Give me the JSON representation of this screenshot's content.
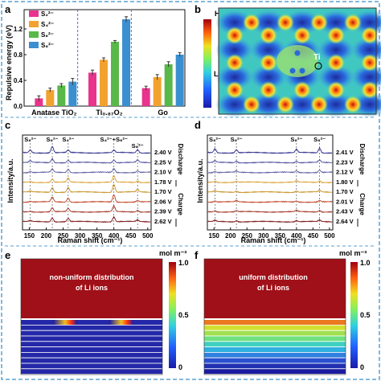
{
  "panels": {
    "a": {
      "letter": "a",
      "ylabel": "Repulsive energy (eV)",
      "yticks": [
        "0.0",
        "0.4",
        "0.8",
        "1.2"
      ],
      "legend": [
        "S₂²⁻",
        "S₄²⁻",
        "S₆²⁻",
        "S₈²⁻"
      ],
      "group_labels": [
        "Anatase TiO₂",
        "Ti₀.₈₇O₂",
        "Go"
      ]
    },
    "b": {
      "letter": "b",
      "colorbar_high": "High",
      "colorbar_low": "Low",
      "atom_label": "Ti"
    },
    "c": {
      "letter": "c",
      "ylabel": "Intensity/a.u.",
      "xlabel": "Raman shift (cm⁻¹)",
      "xticks": [
        "150",
        "200",
        "250",
        "300",
        "350",
        "400",
        "450",
        "500"
      ],
      "peak_labels": [
        "S₈²⁻",
        "S₈²⁻",
        "S₄²⁻",
        "S₄²⁻+S₆²⁻",
        "S₈²⁻"
      ],
      "voltages": [
        "2.40 V",
        "2.25 V",
        "2.10 V",
        "1.78 V",
        "1.70 V",
        "2.06 V",
        "2.39 V",
        "2.62 V"
      ],
      "discharge": "Discharge",
      "charge": "Charge"
    },
    "d": {
      "letter": "d",
      "ylabel": "Intensity/a.u.",
      "xlabel": "Raman shift (cm⁻¹)",
      "xticks": [
        "150",
        "200",
        "250",
        "300",
        "350",
        "400",
        "450",
        "500"
      ],
      "peak_labels": [
        "S₈²⁻",
        "S₈²⁻",
        "S₈²⁻",
        "S₈²⁻"
      ],
      "voltages": [
        "2.41 V",
        "2.23 V",
        "2.12 V",
        "1.80 V",
        "1.70 V",
        "2.01 V",
        "2.43 V",
        "2.64 V"
      ],
      "discharge": "Discharge",
      "charge": "Charge"
    },
    "e": {
      "letter": "e",
      "caption_line1": "non-uniform distribution",
      "caption_line2": "of Li ions",
      "unit": "mol m⁻³",
      "cb_ticks": [
        "1.0",
        "0.5",
        "0"
      ]
    },
    "f": {
      "letter": "f",
      "caption_line1": "uniform distribution",
      "caption_line2": "of Li ions",
      "unit": "mol m⁻³",
      "cb_ticks": [
        "1.0",
        "0.5",
        "0"
      ]
    }
  },
  "colors": {
    "s2": "#e8348c",
    "s4": "#f2a22e",
    "s6": "#58b848",
    "s8": "#3a8fd0",
    "frame": "#5aa0d0"
  },
  "chart_data": [
    {
      "type": "bar",
      "panel": "a",
      "categories": [
        "Anatase TiO₂",
        "Ti₀.₈₇O₂",
        "Go"
      ],
      "series": [
        {
          "name": "S₂²⁻",
          "values": [
            0.12,
            0.52,
            0.28
          ]
        },
        {
          "name": "S₄²⁻",
          "values": [
            0.25,
            0.72,
            0.45
          ]
        },
        {
          "name": "S₆²⁻",
          "values": [
            0.32,
            1.0,
            0.65
          ]
        },
        {
          "name": "S₈²⁻",
          "values": [
            0.38,
            1.35,
            0.8
          ]
        }
      ],
      "errors": [
        [
          0.04,
          0.04,
          0.03
        ],
        [
          0.03,
          0.03,
          0.04
        ],
        [
          0.03,
          0.02,
          0.04
        ],
        [
          0.05,
          0.04,
          0.03
        ]
      ],
      "ylabel": "Repulsive energy (eV)",
      "ylim": [
        0,
        1.5
      ]
    },
    {
      "type": "line",
      "panel": "c",
      "xlabel": "Raman shift (cm⁻¹)",
      "ylabel": "Intensity/a.u.",
      "xlim": [
        130,
        510
      ],
      "peaks": [
        153,
        218,
        265,
        400,
        470
      ],
      "series": [
        {
          "name": "2.40 V",
          "peaks": [
            0.35,
            0.8,
            0.3,
            0.3,
            0.4
          ]
        },
        {
          "name": "2.25 V",
          "peaks": [
            0.2,
            0.5,
            0.3,
            0.35,
            0.3
          ]
        },
        {
          "name": "2.10 V",
          "peaks": [
            0.15,
            0.4,
            0.4,
            0.5,
            0.2
          ]
        },
        {
          "name": "1.78 V",
          "peaks": [
            0.1,
            0.4,
            0.5,
            0.8,
            0.2
          ]
        },
        {
          "name": "1.70 V",
          "peaks": [
            0.1,
            0.6,
            0.6,
            1.0,
            0.3
          ]
        },
        {
          "name": "2.06 V",
          "peaks": [
            0.1,
            0.6,
            0.5,
            0.9,
            0.2
          ]
        },
        {
          "name": "2.39 V",
          "peaks": [
            0.1,
            0.5,
            0.4,
            0.7,
            0.2
          ]
        },
        {
          "name": "2.62 V",
          "peaks": [
            0.1,
            0.5,
            0.4,
            0.6,
            0.2
          ]
        }
      ]
    },
    {
      "type": "line",
      "panel": "d",
      "xlabel": "Raman shift (cm⁻¹)",
      "ylabel": "Intensity/a.u.",
      "xlim": [
        130,
        510
      ],
      "peaks": [
        153,
        218,
        400,
        470
      ],
      "series": [
        {
          "name": "2.41 V",
          "peaks": [
            0.5,
            0.4,
            0.4,
            0.6
          ]
        },
        {
          "name": "2.23 V",
          "peaks": [
            0.2,
            0.2,
            0.2,
            0.3
          ]
        },
        {
          "name": "2.12 V",
          "peaks": [
            0.15,
            0.15,
            0.2,
            0.3
          ]
        },
        {
          "name": "1.80 V",
          "peaks": [
            0.15,
            0.15,
            0.15,
            0.2
          ]
        },
        {
          "name": "1.70 V",
          "peaks": [
            0.15,
            0.15,
            0.15,
            0.2
          ]
        },
        {
          "name": "2.01 V",
          "peaks": [
            0.15,
            0.15,
            0.15,
            0.2
          ]
        },
        {
          "name": "2.43 V",
          "peaks": [
            0.15,
            0.15,
            0.15,
            0.2
          ]
        },
        {
          "name": "2.64 V",
          "peaks": [
            0.15,
            0.15,
            0.15,
            0.2
          ]
        }
      ]
    }
  ]
}
